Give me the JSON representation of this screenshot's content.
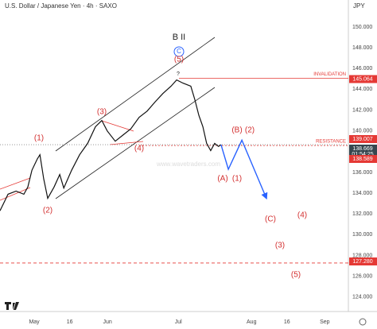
{
  "chart_data": {
    "type": "line",
    "title": "U.S. Dollar / Japanese Yen · 4h · SAXO",
    "currency": "JPY",
    "watermark": "www.wavetraders.com",
    "color": "#111111",
    "x": [
      -14.5,
      -11.1,
      -7.7,
      -4.4,
      -2.7,
      -1,
      1.3,
      2.4,
      4,
      5.7,
      8.4,
      10.8,
      12.5,
      15.8,
      19.2,
      22.6,
      25.9,
      28.6,
      30.9,
      34.3,
      37.6,
      40.9,
      44.4,
      47.8,
      51.2,
      54.5,
      57.9,
      60.3,
      63,
      66.3,
      68,
      69.7,
      71.4,
      73,
      74.7,
      76.4,
      78,
      79.1
    ],
    "values": [
      132.3,
      133.9,
      134.2,
      133.9,
      134.6,
      136.2,
      137.3,
      137.7,
      135.4,
      133.5,
      134.6,
      135.8,
      134.5,
      136.2,
      137.7,
      138.8,
      140.4,
      141,
      140,
      139,
      139.6,
      140.2,
      141.3,
      141.9,
      142.8,
      143.6,
      144.3,
      144.9,
      144.6,
      144.3,
      143,
      141.5,
      140.4,
      138.8,
      138.1,
      138.8,
      138.5,
      138.669
    ],
    "projection": {
      "color": "#2962ff",
      "x": [
        79.1,
        82.2,
        87.9,
        98.3
      ],
      "values": [
        138.669,
        136.3,
        139.1,
        133.5
      ]
    },
    "xlim": [
      -14.5,
      133
    ],
    "ylim": [
      122.76,
      152.6
    ],
    "xticks": [
      {
        "value": 0,
        "label": "May"
      },
      {
        "value": 15,
        "label": "16"
      },
      {
        "value": 31,
        "label": "Jun"
      },
      {
        "value": 61,
        "label": "Jul"
      },
      {
        "value": 92,
        "label": "Aug"
      },
      {
        "value": 107,
        "label": "16"
      },
      {
        "value": 123,
        "label": "Sep"
      }
    ],
    "yticks": [
      {
        "value": 150,
        "label": "150.000"
      },
      {
        "value": 148,
        "label": "148.000"
      },
      {
        "value": 146,
        "label": "146.000"
      },
      {
        "value": 144,
        "label": "144.000"
      },
      {
        "value": 142,
        "label": "142.000"
      },
      {
        "value": 140,
        "label": "140.000"
      },
      {
        "value": 136,
        "label": "136.000"
      },
      {
        "value": 134,
        "label": "134.000"
      },
      {
        "value": 132,
        "label": "132.000"
      },
      {
        "value": 130,
        "label": "130.000"
      },
      {
        "value": 128,
        "label": "128.000"
      },
      {
        "value": 126,
        "label": "126.000"
      },
      {
        "value": 124,
        "label": "124.000"
      }
    ],
    "levels": [
      {
        "value": 145.064,
        "label": "145.064",
        "note": "INVALIDATION",
        "color": "#e53935",
        "line": "solid"
      },
      {
        "value": 139.007,
        "label": "139.007",
        "color": "#e53935",
        "line": "none"
      },
      {
        "value": 138.669,
        "label": "138.669",
        "timer": "01:54:25",
        "color": "#37474f",
        "line": "dotted-gray"
      },
      {
        "value": 138.589,
        "label": "138.589",
        "note": "RESISTANCE",
        "color": "#e53935",
        "line": "dotted"
      },
      {
        "value": 127.28,
        "label": "127.280",
        "color": "#e53935",
        "line": "dashed"
      }
    ],
    "annotations": [
      "B II",
      "C",
      "(5)",
      "?",
      "(1)",
      "(2)",
      "(3)",
      "(4)",
      "(A)",
      "(1)",
      "(B)",
      "(2)",
      "(C)",
      "(4)",
      "(3)",
      "(5)"
    ]
  }
}
